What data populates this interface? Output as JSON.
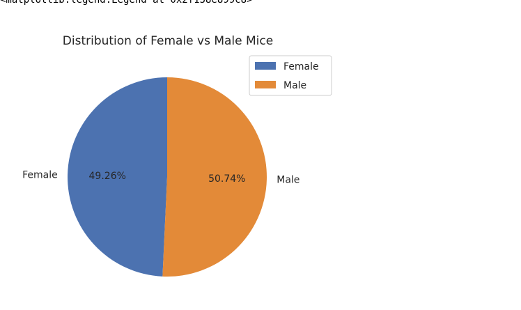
{
  "output_text": "<matplotlib.legend.Legend at 0x2f158e899c8>",
  "chart_data": {
    "type": "pie",
    "title": "Distribution of Female vs Male Mice",
    "labels": [
      "Female",
      "Male"
    ],
    "values": [
      49.26,
      50.74
    ],
    "percent_labels": [
      "49.26%",
      "50.74%"
    ],
    "colors": [
      "#4c72b0",
      "#e38a38"
    ],
    "start_angle_deg": 90,
    "counterclockwise": true,
    "legend": {
      "location": "upper right",
      "entries": [
        "Female",
        "Male"
      ]
    }
  }
}
